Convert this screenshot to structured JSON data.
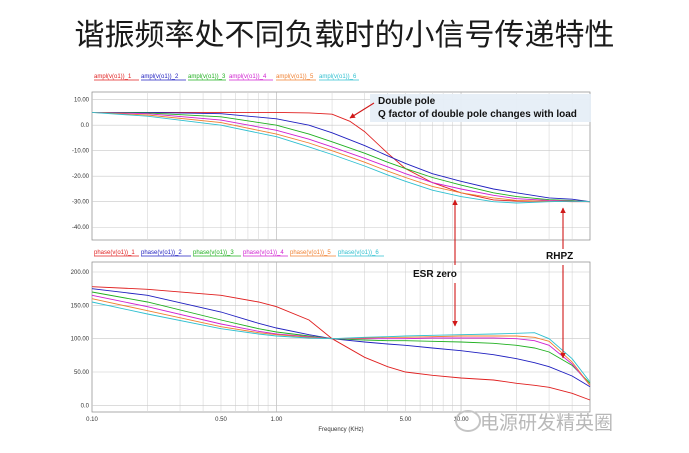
{
  "slide_title": "谐振频率处不同负载时的小信号传递特性",
  "watermark": "电源研发精英圈",
  "watermark_icon": "wechat-icon",
  "annotations": {
    "double_pole": "Double pole",
    "q_factor": "Q factor of double pole changes with load",
    "esr_zero": "ESR zero",
    "rhpz": "RHPZ"
  },
  "chart_data": [
    {
      "type": "line",
      "title": "",
      "xlabel": "",
      "ylabel": "",
      "xscale": "log",
      "xlim": [
        0.1,
        50
      ],
      "ylim": [
        -45,
        13
      ],
      "grid": true,
      "ytick_labels": [
        "10.00",
        "0.0",
        "-10.00",
        "-20.00",
        "-30.00",
        "-40.00"
      ],
      "ytick_values": [
        10,
        0,
        -10,
        -20,
        -30,
        -40
      ],
      "series": [
        {
          "name": "ampl(v(o1))_1",
          "color": "#e02020",
          "x": [
            0.1,
            0.2,
            0.5,
            1,
            1.5,
            2,
            2.5,
            3,
            4,
            5,
            7,
            10,
            15,
            20,
            30,
            40,
            50
          ],
          "y": [
            5,
            5,
            5,
            5,
            4.8,
            4.3,
            1.5,
            -2.5,
            -11,
            -17,
            -22.5,
            -26.5,
            -29.3,
            -29.7,
            -29.8,
            -30,
            -30
          ]
        },
        {
          "name": "ampl(v(o1))_2",
          "color": "#2020c0",
          "x": [
            0.1,
            0.2,
            0.5,
            1,
            1.5,
            2,
            3,
            4,
            5,
            7,
            10,
            15,
            20,
            30,
            40,
            50
          ],
          "y": [
            5,
            5,
            4.5,
            2.5,
            0,
            -3,
            -8,
            -12,
            -15,
            -19,
            -22,
            -25,
            -26.5,
            -28.5,
            -29,
            -30
          ]
        },
        {
          "name": "ampl(v(o1))_3",
          "color": "#20b020",
          "x": [
            0.1,
            0.2,
            0.5,
            1,
            1.5,
            2,
            3,
            4,
            5,
            7,
            10,
            15,
            20,
            30,
            40,
            50
          ],
          "y": [
            5,
            4.8,
            3.3,
            0,
            -3.5,
            -6.5,
            -11,
            -14.5,
            -17,
            -20.5,
            -23.5,
            -26.5,
            -28,
            -29.2,
            -29.5,
            -30
          ]
        },
        {
          "name": "ampl(v(o1))_4",
          "color": "#d020d0",
          "x": [
            0.1,
            0.2,
            0.5,
            1,
            1.5,
            2,
            3,
            4,
            5,
            7,
            10,
            15,
            20,
            30,
            40,
            50
          ],
          "y": [
            5,
            4.5,
            2,
            -2,
            -5.5,
            -8.5,
            -13,
            -16.3,
            -19,
            -22.5,
            -25,
            -27.5,
            -28.8,
            -29.5,
            -29.7,
            -30
          ]
        },
        {
          "name": "ampl(v(o1))_5",
          "color": "#f08030",
          "x": [
            0.1,
            0.2,
            0.5,
            1,
            1.5,
            2,
            3,
            4,
            5,
            7,
            10,
            15,
            20,
            30,
            40,
            50
          ],
          "y": [
            5,
            4,
            1,
            -3.5,
            -7,
            -10,
            -14.5,
            -18,
            -20.5,
            -24,
            -26.5,
            -28.5,
            -29.5,
            -29.8,
            -29.8,
            -30
          ]
        },
        {
          "name": "ampl(v(o1))_6",
          "color": "#30c0d0",
          "x": [
            0.1,
            0.2,
            0.5,
            1,
            1.5,
            2,
            3,
            4,
            5,
            7,
            10,
            15,
            20,
            30,
            40,
            50
          ],
          "y": [
            5,
            3.5,
            0,
            -4.5,
            -8.5,
            -11.5,
            -16,
            -19.5,
            -22,
            -25.5,
            -28,
            -30,
            -30.5,
            -30,
            -29.8,
            -30
          ]
        }
      ]
    },
    {
      "type": "line",
      "title": "",
      "xlabel": "Frequency (KHz)",
      "ylabel": "",
      "xscale": "log",
      "xlim": [
        0.1,
        50
      ],
      "ylim": [
        -10,
        215
      ],
      "grid": true,
      "xtick_labels": [
        "0.10",
        "0.50",
        "1.00",
        "5.00",
        "10.00"
      ],
      "xtick_values": [
        0.1,
        0.5,
        1,
        5,
        10
      ],
      "ytick_labels": [
        "200.00",
        "150.00",
        "100.00",
        "50.00",
        "0.0"
      ],
      "ytick_values": [
        200,
        150,
        100,
        50,
        0
      ],
      "series": [
        {
          "name": "phase(v(o1))_1",
          "color": "#e02020",
          "x": [
            0.1,
            0.2,
            0.5,
            0.8,
            1,
            1.5,
            2,
            3,
            4,
            5,
            7,
            10,
            15,
            20,
            25,
            30,
            40,
            50
          ],
          "y": [
            178,
            174,
            165,
            155,
            148,
            128,
            100,
            72,
            58,
            50,
            45,
            41,
            38,
            33,
            30,
            27,
            18,
            8
          ]
        },
        {
          "name": "phase(v(o1))_2",
          "color": "#2020c0",
          "x": [
            0.1,
            0.2,
            0.5,
            0.8,
            1,
            1.5,
            2,
            3,
            4,
            5,
            7,
            10,
            15,
            20,
            25,
            30,
            40,
            50
          ],
          "y": [
            175,
            165,
            140,
            123,
            116,
            106,
            100,
            95,
            92,
            90,
            86,
            82,
            76,
            70,
            64,
            58,
            44,
            28
          ]
        },
        {
          "name": "phase(v(o1))_3",
          "color": "#20b020",
          "x": [
            0.1,
            0.2,
            0.5,
            0.8,
            1,
            1.5,
            2,
            3,
            4,
            5,
            7,
            10,
            15,
            20,
            25,
            30,
            40,
            50
          ],
          "y": [
            170,
            155,
            128,
            115,
            110,
            104,
            100,
            98,
            97,
            97,
            96,
            95,
            93,
            90,
            86,
            80,
            60,
            33
          ]
        },
        {
          "name": "phase(v(o1))_4",
          "color": "#d020d0",
          "x": [
            0.1,
            0.2,
            0.5,
            0.8,
            1,
            1.5,
            2,
            3,
            4,
            5,
            7,
            10,
            15,
            20,
            25,
            30,
            40,
            50
          ],
          "y": [
            165,
            148,
            122,
            111,
            107,
            103,
            100,
            100,
            100,
            100,
            101,
            101,
            101,
            100,
            97,
            90,
            62,
            30
          ]
        },
        {
          "name": "phase(v(o1))_5",
          "color": "#f08030",
          "x": [
            0.1,
            0.2,
            0.5,
            0.8,
            1,
            1.5,
            2,
            3,
            4,
            5,
            7,
            10,
            15,
            20,
            25,
            30,
            40,
            50
          ],
          "y": [
            160,
            142,
            118,
            109,
            106,
            102,
            100,
            101,
            102,
            102,
            103,
            104,
            104,
            104,
            102,
            96,
            65,
            30
          ]
        },
        {
          "name": "phase(v(o1))_6",
          "color": "#30c0d0",
          "x": [
            0.1,
            0.2,
            0.5,
            0.8,
            1,
            1.5,
            2,
            3,
            4,
            5,
            7,
            10,
            15,
            20,
            25,
            30,
            40,
            50
          ],
          "y": [
            155,
            137,
            115,
            107,
            104,
            101,
            100,
            102,
            103,
            104,
            105,
            106,
            107,
            108,
            109,
            100,
            70,
            35
          ]
        }
      ]
    }
  ]
}
